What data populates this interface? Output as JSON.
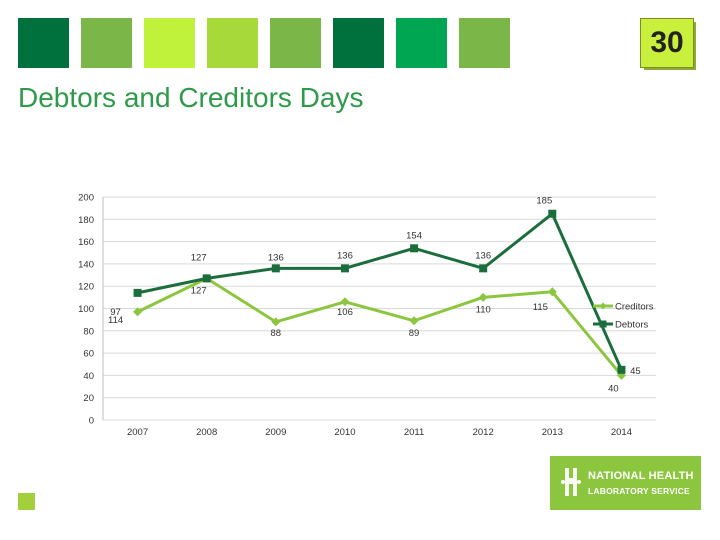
{
  "header": {
    "tile_colors": [
      "#00703c",
      "#7ab648",
      "#c1f23b",
      "#a8d93a",
      "#7ab648",
      "#00703c",
      "#00a651",
      "#7ab648"
    ],
    "page_number": "30"
  },
  "title": "Debtors and Creditors Days",
  "logo": {
    "line1": "NATIONAL HEALTH",
    "line2": "LABORATORY SERVICE",
    "icon": "nhls-logo-icon"
  },
  "chart_data": {
    "type": "line",
    "categories": [
      "2007",
      "2008",
      "2009",
      "2010",
      "2011",
      "2012",
      "2013",
      "2014"
    ],
    "ylim": [
      0,
      200
    ],
    "yticks": [
      "0",
      "20",
      "40",
      "60",
      "80",
      "100",
      "120",
      "140",
      "160",
      "180",
      "200"
    ],
    "grid": true,
    "legend_position": "right",
    "series": [
      {
        "name": "Creditors",
        "color": "#8cc63f",
        "marker": "diamond",
        "values": [
          97,
          127,
          88,
          106,
          89,
          110,
          115,
          40
        ],
        "labels": [
          "97",
          "127",
          "88",
          "106",
          "89",
          "110",
          "115",
          "40"
        ]
      },
      {
        "name": "Debtors",
        "color": "#1b6e3c",
        "marker": "square",
        "values": [
          114,
          127,
          136,
          136,
          154,
          136,
          185,
          45
        ],
        "labels": [
          "114",
          "127",
          "136",
          "136",
          "154",
          "136",
          "185",
          "45"
        ]
      }
    ]
  }
}
